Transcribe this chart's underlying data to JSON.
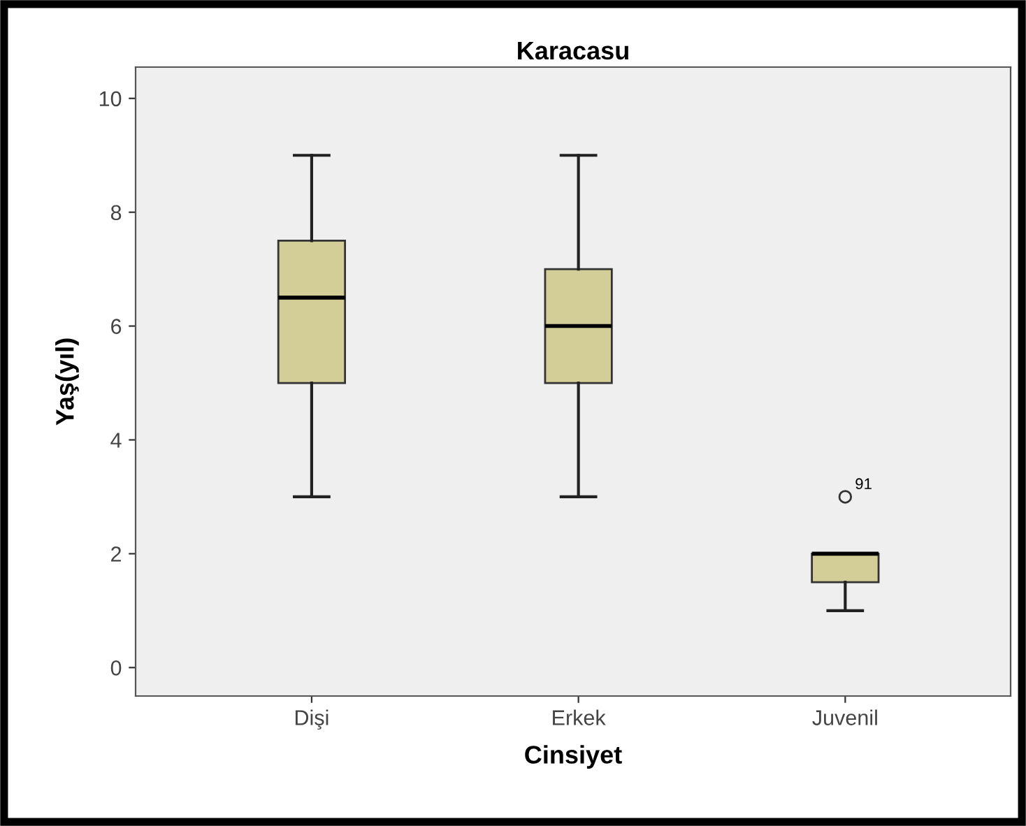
{
  "chart_data": {
    "type": "box",
    "title": "Karacasu",
    "xlabel": "Cinsiyet",
    "ylabel": "Yaş(yıl)",
    "categories": [
      "Dişi",
      "Erkek",
      "Juvenil"
    ],
    "series": [
      {
        "color": "#d3ce97",
        "boxes": [
          {
            "low": 3,
            "q1": 5,
            "median": 6.5,
            "q3": 7.5,
            "high": 9
          },
          {
            "low": 3,
            "q1": 5,
            "median": 6,
            "q3": 7,
            "high": 9
          },
          {
            "low": 1,
            "q1": 1.5,
            "median": 2,
            "q3": 2,
            "high": 2,
            "outliers": [
              3
            ]
          }
        ]
      }
    ],
    "ylim": [
      -0.5,
      10.55
    ],
    "yticks": [
      0,
      2,
      4,
      6,
      8,
      10
    ],
    "grid": false,
    "annotations": [
      "91"
    ]
  }
}
